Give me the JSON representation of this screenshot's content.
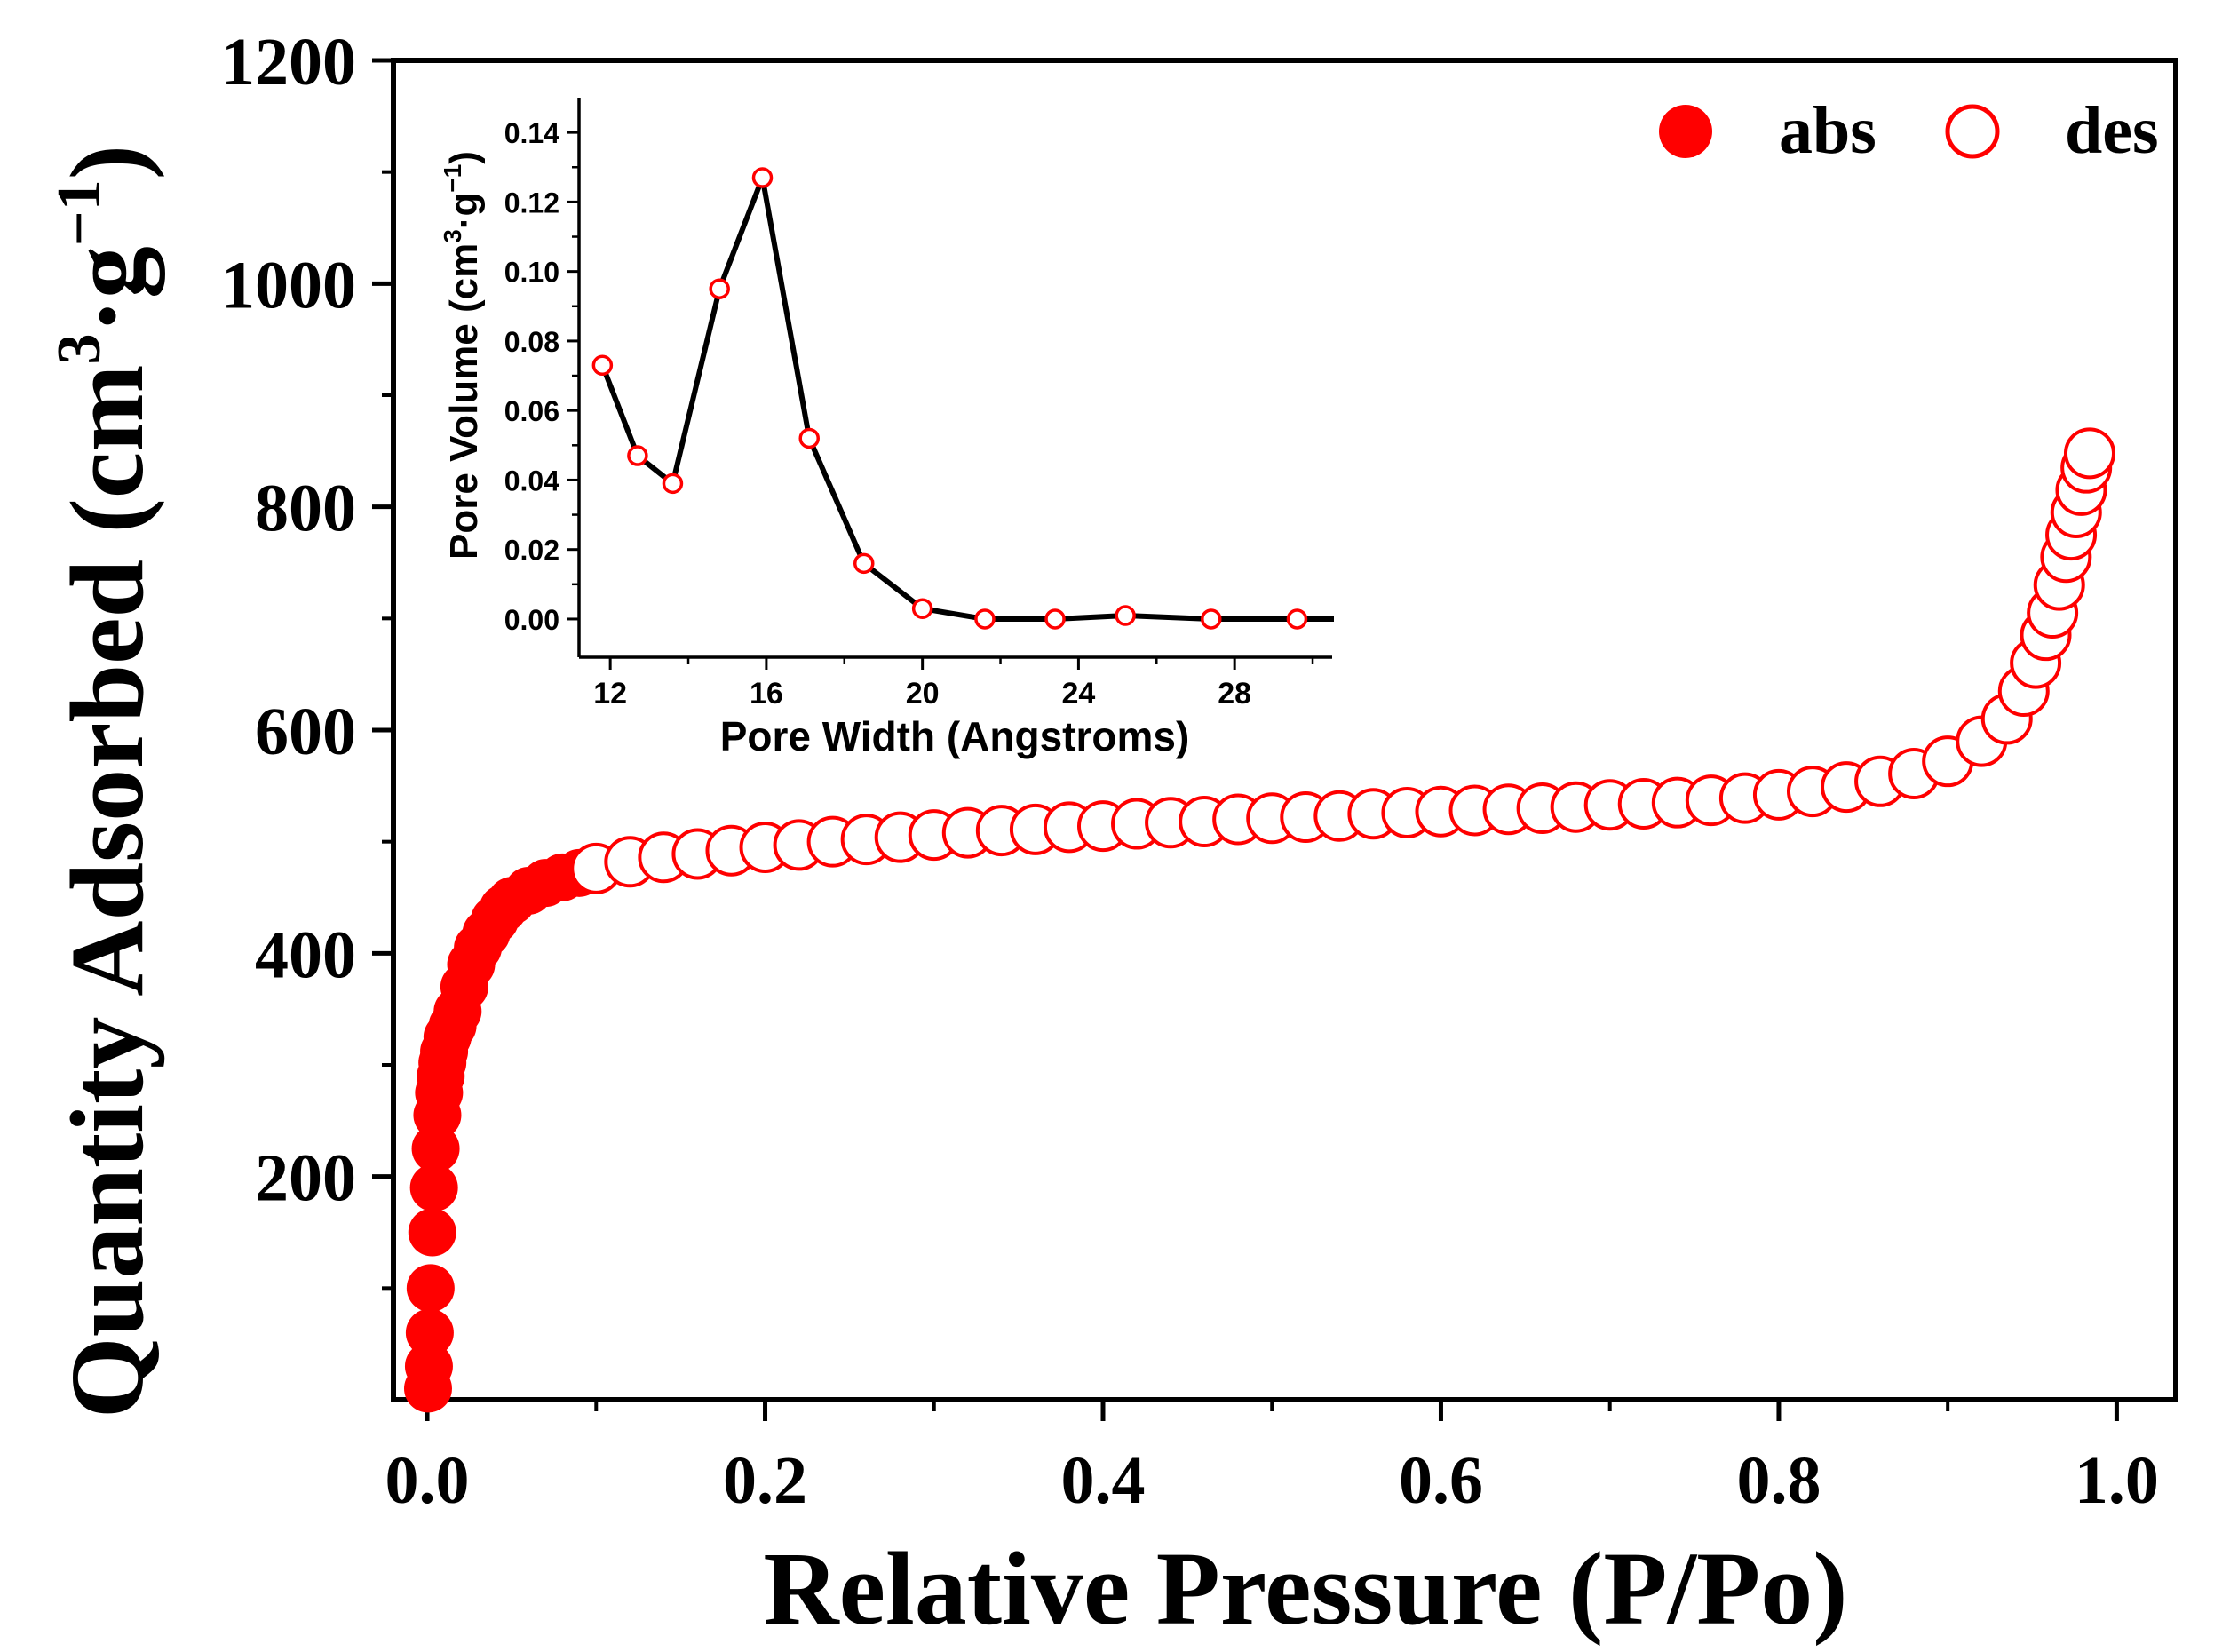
{
  "chart_data": [
    {
      "type": "scatter",
      "title": "",
      "xlabel": "Relative Pressure (P/Po)",
      "ylabel": {
        "base": "Quantity Adsorbed (cm",
        "sup1": "3",
        "mid": "·g",
        "sup2": "−1",
        "end": ")"
      },
      "xlim": [
        -0.02,
        1.035
      ],
      "ylim": [
        0,
        1200
      ],
      "xticks": [
        0.0,
        0.2,
        0.4,
        0.6,
        0.8,
        1.0
      ],
      "xtick_labels": [
        "0.0",
        "0.2",
        "0.4",
        "0.6",
        "0.8",
        "1.0"
      ],
      "yticks": [
        200,
        400,
        600,
        800,
        1000,
        1200
      ],
      "ytick_labels": [
        "200",
        "400",
        "600",
        "800",
        "1000",
        "1200"
      ],
      "legend": {
        "position": "top-right",
        "entries": [
          "abs",
          "des"
        ]
      },
      "colors": {
        "marker": "#ff0000",
        "axis": "#000000"
      },
      "series": [
        {
          "name": "abs",
          "marker": "filled-circle",
          "x": [
            0.0005,
            0.001,
            0.0015,
            0.002,
            0.003,
            0.004,
            0.005,
            0.006,
            0.007,
            0.008,
            0.009,
            0.01,
            0.012,
            0.015,
            0.018,
            0.022,
            0.026,
            0.03,
            0.035,
            0.04,
            0.045,
            0.05,
            0.06,
            0.07,
            0.08,
            0.09
          ],
          "y": [
            10,
            30,
            60,
            100,
            150,
            190,
            225,
            255,
            275,
            290,
            302,
            312,
            325,
            335,
            348,
            370,
            390,
            405,
            418,
            430,
            440,
            447,
            456,
            463,
            468,
            472
          ]
        },
        {
          "name": "des",
          "marker": "open-circle",
          "x": [
            0.1,
            0.12,
            0.14,
            0.16,
            0.18,
            0.2,
            0.22,
            0.24,
            0.26,
            0.28,
            0.3,
            0.32,
            0.34,
            0.36,
            0.38,
            0.4,
            0.42,
            0.44,
            0.46,
            0.48,
            0.5,
            0.52,
            0.54,
            0.56,
            0.58,
            0.6,
            0.62,
            0.64,
            0.66,
            0.68,
            0.7,
            0.72,
            0.74,
            0.76,
            0.78,
            0.8,
            0.82,
            0.84,
            0.86,
            0.88,
            0.9,
            0.92,
            0.935,
            0.945,
            0.952,
            0.958,
            0.962,
            0.966,
            0.97,
            0.973,
            0.976,
            0.979,
            0.982,
            0.984
          ],
          "y": [
            476,
            482,
            486,
            489,
            492,
            495,
            497,
            500,
            502,
            504,
            506,
            508,
            510,
            511,
            513,
            514,
            516,
            517,
            518,
            520,
            521,
            522,
            523,
            525,
            526,
            527,
            528,
            529,
            530,
            531,
            533,
            534,
            535,
            537,
            539,
            542,
            545,
            549,
            554,
            561,
            572,
            590,
            610,
            635,
            660,
            685,
            705,
            730,
            755,
            775,
            795,
            815,
            835,
            848
          ]
        }
      ]
    },
    {
      "type": "line",
      "inset": true,
      "title": "",
      "xlabel": "Pore Width (Angstroms)",
      "ylabel": {
        "base": "Pore Volume (cm",
        "sup1": "3",
        "mid": "·g",
        "sup2": "−1",
        "end": ")"
      },
      "xlim": [
        11.2,
        30.5
      ],
      "ylim": [
        -0.011,
        0.15
      ],
      "xticks": [
        12,
        16,
        20,
        24,
        28
      ],
      "xtick_labels": [
        "12",
        "16",
        "20",
        "24",
        "28"
      ],
      "yticks": [
        0.0,
        0.02,
        0.04,
        0.06,
        0.08,
        0.1,
        0.12,
        0.14
      ],
      "ytick_labels": [
        "0.00",
        "0.02",
        "0.04",
        "0.06",
        "0.08",
        "0.10",
        "0.12",
        "0.14"
      ],
      "colors": {
        "line": "#000000",
        "marker_edge": "#ff0000",
        "marker_fill": "#ffffff"
      },
      "series": [
        {
          "name": "Pore Volume",
          "x": [
            11.8,
            12.7,
            13.6,
            14.8,
            15.9,
            17.1,
            18.5,
            20.0,
            21.6,
            23.4,
            25.2,
            27.4,
            29.6
          ],
          "y": [
            0.073,
            0.047,
            0.039,
            0.095,
            0.127,
            0.052,
            0.016,
            0.003,
            0.0,
            0.0,
            0.001,
            0.0,
            0.0
          ]
        }
      ]
    }
  ]
}
